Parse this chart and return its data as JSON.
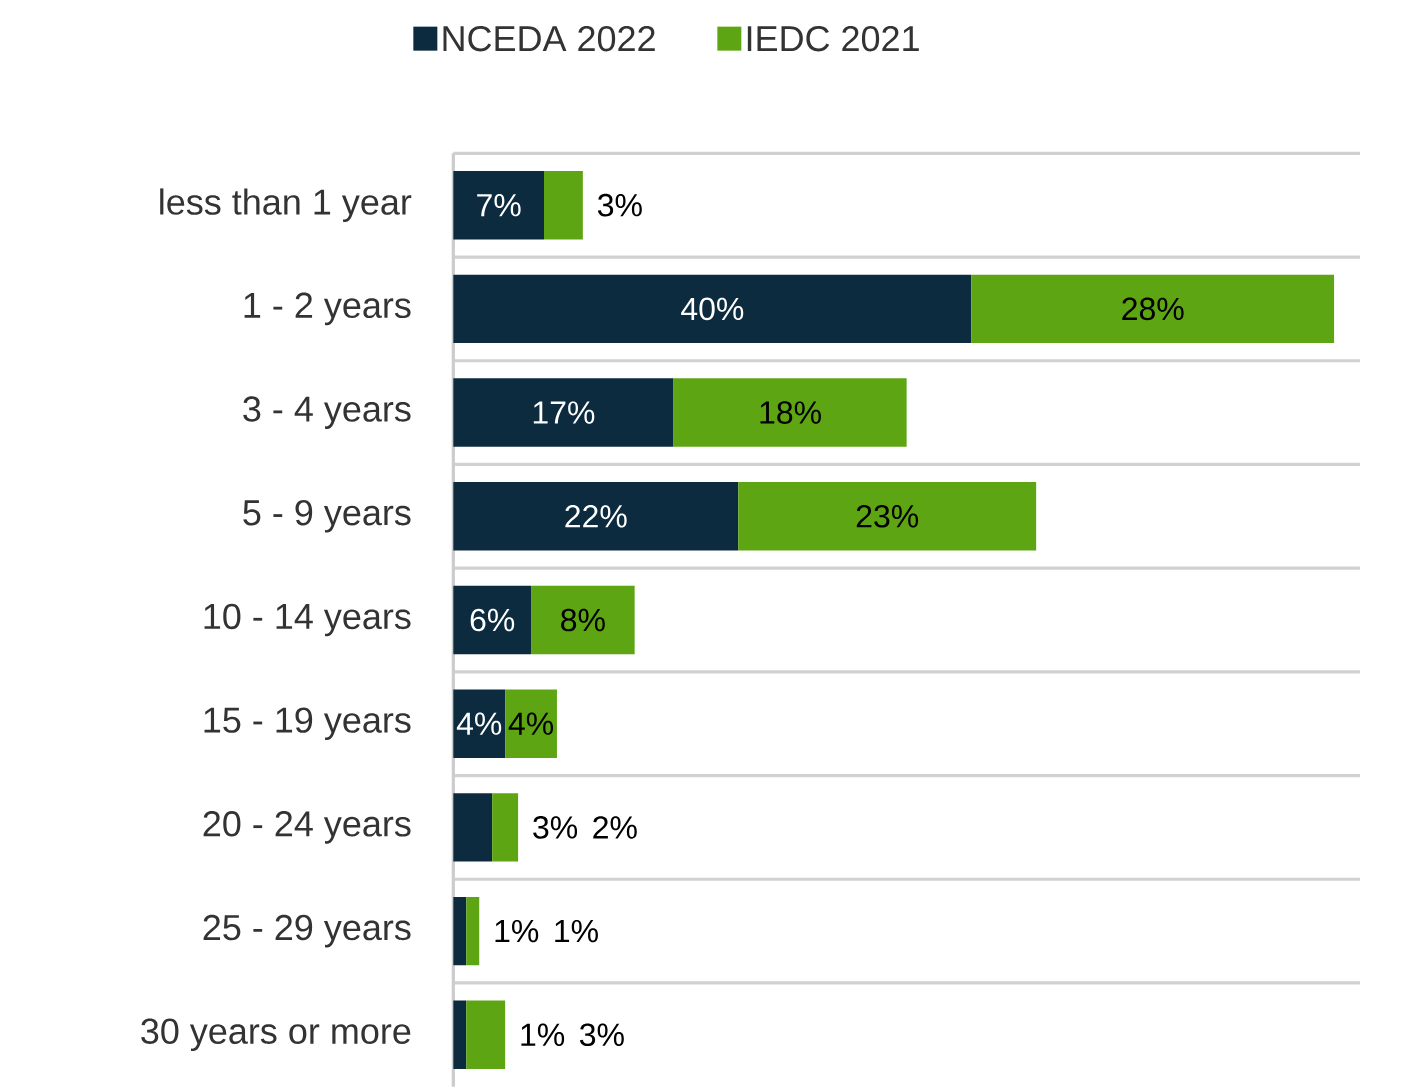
{
  "chart_data": {
    "type": "bar",
    "orientation": "horizontal",
    "stacked": true,
    "legend": "top",
    "grid": "y",
    "tick_labels": "y",
    "xlim": [
      0,
      70
    ],
    "categories": [
      "less than 1 year",
      "1 - 2 years",
      "3 - 4 years",
      "5 - 9 years",
      "10 - 14 years",
      "15 - 19 years",
      "20 - 24 years",
      "25 - 29 years",
      "30 years or more"
    ],
    "series": [
      {
        "name": "NCEDA 2022",
        "color": "#0d2b3e",
        "values": [
          7,
          40,
          17,
          22,
          6,
          4,
          3,
          1,
          1
        ],
        "value_labels": [
          "7%",
          "40%",
          "17%",
          "22%",
          "6%",
          "4%",
          "3%",
          "1%",
          "1%"
        ]
      },
      {
        "name": "IEDC 2021",
        "color": "#5ea513",
        "values": [
          3,
          28,
          18,
          23,
          8,
          4,
          2,
          1,
          3
        ],
        "value_labels": [
          "3%",
          "28%",
          "18%",
          "23%",
          "8%",
          "4%",
          "2%",
          "1%",
          "3%"
        ]
      }
    ]
  }
}
